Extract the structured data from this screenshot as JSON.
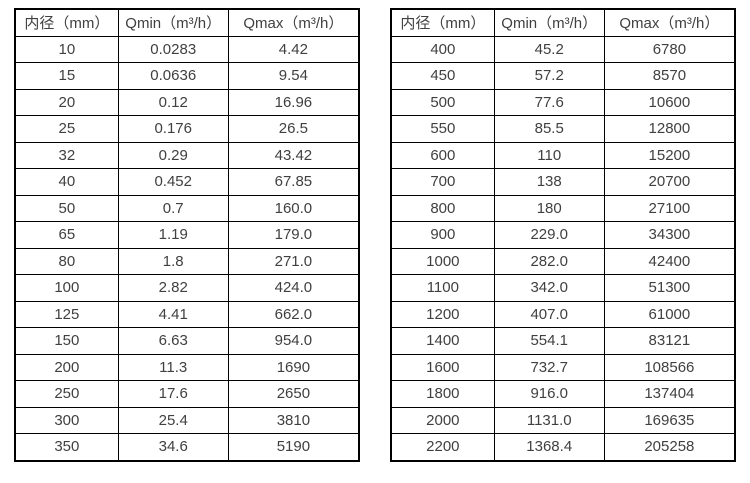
{
  "page": {
    "background": "#ffffff",
    "text_color": "#404040",
    "border_color": "#000000"
  },
  "tables": [
    {
      "name": "flow-spec-table-small-diameters",
      "headers": [
        "内径（mm）",
        "Qmin（m³/h）",
        "Qmax（m³/h）"
      ],
      "rows": [
        [
          "10",
          "0.0283",
          "4.42"
        ],
        [
          "15",
          "0.0636",
          "9.54"
        ],
        [
          "20",
          "0.12",
          "16.96"
        ],
        [
          "25",
          "0.176",
          "26.5"
        ],
        [
          "32",
          "0.29",
          "43.42"
        ],
        [
          "40",
          "0.452",
          "67.85"
        ],
        [
          "50",
          "0.7",
          "160.0"
        ],
        [
          "65",
          "1.19",
          "179.0"
        ],
        [
          "80",
          "1.8",
          "271.0"
        ],
        [
          "100",
          "2.82",
          "424.0"
        ],
        [
          "125",
          "4.41",
          "662.0"
        ],
        [
          "150",
          "6.63",
          "954.0"
        ],
        [
          "200",
          "11.3",
          "1690"
        ],
        [
          "250",
          "17.6",
          "2650"
        ],
        [
          "300",
          "25.4",
          "3810"
        ],
        [
          "350",
          "34.6",
          "5190"
        ]
      ]
    },
    {
      "name": "flow-spec-table-large-diameters",
      "headers": [
        "内径（mm）",
        "Qmin（m³/h）",
        "Qmax（m³/h）"
      ],
      "rows": [
        [
          "400",
          "45.2",
          "6780"
        ],
        [
          "450",
          "57.2",
          "8570"
        ],
        [
          "500",
          "77.6",
          "10600"
        ],
        [
          "550",
          "85.5",
          "12800"
        ],
        [
          "600",
          "110",
          "15200"
        ],
        [
          "700",
          "138",
          "20700"
        ],
        [
          "800",
          "180",
          "27100"
        ],
        [
          "900",
          "229.0",
          "34300"
        ],
        [
          "1000",
          "282.0",
          "42400"
        ],
        [
          "1100",
          "342.0",
          "51300"
        ],
        [
          "1200",
          "407.0",
          "61000"
        ],
        [
          "1400",
          "554.1",
          "83121"
        ],
        [
          "1600",
          "732.7",
          "108566"
        ],
        [
          "1800",
          "916.0",
          "137404"
        ],
        [
          "2000",
          "1131.0",
          "169635"
        ],
        [
          "2200",
          "1368.4",
          "205258"
        ]
      ]
    }
  ]
}
